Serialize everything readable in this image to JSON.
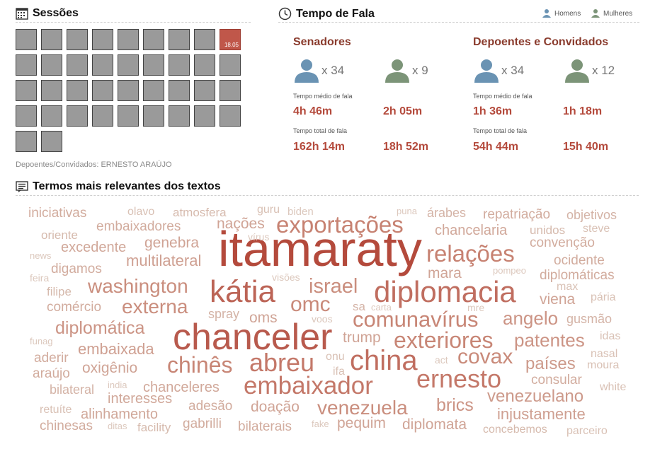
{
  "sessions": {
    "title": "Sessões",
    "icon": "calendar-icon",
    "active_date": "18.05",
    "total": 38,
    "depoentes_label": "Depoentes/Convidados: ERNESTO ARAÚJO"
  },
  "speech": {
    "title": "Tempo de Fala",
    "icon": "clock-icon",
    "legend": {
      "men": "Homens",
      "women": "Mulheres"
    },
    "colors": {
      "men": "#6a93b3",
      "women": "#7c9478",
      "highlight": "#b44a3c",
      "heading": "#8a3b2d"
    },
    "groups": [
      {
        "title": "Senadores",
        "men": {
          "count": "x 34",
          "avg": "4h 46m",
          "total": "162h 14m"
        },
        "women": {
          "count": "x 9",
          "avg": "2h 05m",
          "total": "18h 52m"
        }
      },
      {
        "title": "Depoentes e Convidados",
        "men": {
          "count": "x 34",
          "avg": "1h 36m",
          "total": "54h 44m"
        },
        "women": {
          "count": "x 12",
          "avg": "1h 18m",
          "total": "15h 40m"
        }
      }
    ],
    "avg_label": "Tempo médio de fala",
    "total_label": "Tempo total de fala"
  },
  "terms": {
    "title": "Termos mais relevantes dos textos",
    "icon": "text-icon",
    "words": [
      {
        "t": "itamaraty",
        "s": 70,
        "c": "#b44a3c"
      },
      {
        "t": "chanceler",
        "s": 52,
        "c": "#b85a4d"
      },
      {
        "t": "kátia",
        "s": 44,
        "c": "#bc6456"
      },
      {
        "t": "diplomacia",
        "s": 42,
        "c": "#c06e60"
      },
      {
        "t": "china",
        "s": 40,
        "c": "#c06e60"
      },
      {
        "t": "ernesto",
        "s": 36,
        "c": "#c47869"
      },
      {
        "t": "abreu",
        "s": 36,
        "c": "#c47869"
      },
      {
        "t": "embaixador",
        "s": 35,
        "c": "#c47869"
      },
      {
        "t": "exportações",
        "s": 33,
        "c": "#c78272"
      },
      {
        "t": "relações",
        "s": 33,
        "c": "#c78272"
      },
      {
        "t": "chinês",
        "s": 32,
        "c": "#c88676"
      },
      {
        "t": "exteriores",
        "s": 32,
        "c": "#c88676"
      },
      {
        "t": "comunavírus",
        "s": 31,
        "c": "#c88676"
      },
      {
        "t": "omc",
        "s": 30,
        "c": "#c98a7a"
      },
      {
        "t": "covax",
        "s": 30,
        "c": "#c98a7a"
      },
      {
        "t": "israel",
        "s": 29,
        "c": "#ca8e7e"
      },
      {
        "t": "venezuela",
        "s": 28,
        "c": "#ca8e7e"
      },
      {
        "t": "washington",
        "s": 28,
        "c": "#ca8e7e"
      },
      {
        "t": "externa",
        "s": 28,
        "c": "#ca8e7e"
      },
      {
        "t": "angelo",
        "s": 26,
        "c": "#cc9485"
      },
      {
        "t": "patentes",
        "s": 26,
        "c": "#cc9485"
      },
      {
        "t": "diplomática",
        "s": 25,
        "c": "#cc9485"
      },
      {
        "t": "brics",
        "s": 25,
        "c": "#cc9485"
      },
      {
        "t": "venezuelano",
        "s": 24,
        "c": "#cd9a8b"
      },
      {
        "t": "países",
        "s": 24,
        "c": "#cd9a8b"
      },
      {
        "t": "injustamente",
        "s": 22,
        "c": "#cfa092"
      },
      {
        "t": "multilateral",
        "s": 22,
        "c": "#cfa092"
      },
      {
        "t": "embaixada",
        "s": 22,
        "c": "#cfa092"
      },
      {
        "t": "diplomata",
        "s": 21,
        "c": "#d0a496"
      },
      {
        "t": "oxigênio",
        "s": 21,
        "c": "#d0a496"
      },
      {
        "t": "doação",
        "s": 21,
        "c": "#d0a496"
      },
      {
        "t": "pequim",
        "s": 21,
        "c": "#d0a496"
      },
      {
        "t": "trump",
        "s": 21,
        "c": "#d0a496"
      },
      {
        "t": "mara",
        "s": 21,
        "c": "#d0a496"
      },
      {
        "t": "nações",
        "s": 21,
        "c": "#d0a496"
      },
      {
        "t": "oms",
        "s": 21,
        "c": "#d0a496"
      },
      {
        "t": "genebra",
        "s": 21,
        "c": "#d0a496"
      },
      {
        "t": "viena",
        "s": 21,
        "c": "#d0a496"
      },
      {
        "t": "chancelaria",
        "s": 20,
        "c": "#d1a89a"
      },
      {
        "t": "excedente",
        "s": 20,
        "c": "#d1a89a"
      },
      {
        "t": "alinhamento",
        "s": 20,
        "c": "#d1a89a"
      },
      {
        "t": "chanceleres",
        "s": 20,
        "c": "#d1a89a"
      },
      {
        "t": "interesses",
        "s": 20,
        "c": "#d1a89a"
      },
      {
        "t": "embaixadores",
        "s": 19,
        "c": "#d2ac9e"
      },
      {
        "t": "repatriação",
        "s": 19,
        "c": "#d2ac9e"
      },
      {
        "t": "diplomáticas",
        "s": 19,
        "c": "#d2ac9e"
      },
      {
        "t": "digamos",
        "s": 19,
        "c": "#d2ac9e"
      },
      {
        "t": "consular",
        "s": 19,
        "c": "#d2ac9e"
      },
      {
        "t": "convenção",
        "s": 19,
        "c": "#d2ac9e"
      },
      {
        "t": "ocidente",
        "s": 19,
        "c": "#d2ac9e"
      },
      {
        "t": "comércio",
        "s": 19,
        "c": "#d2ac9e"
      },
      {
        "t": "iniciativas",
        "s": 19,
        "c": "#d2ac9e"
      },
      {
        "t": "chinesas",
        "s": 19,
        "c": "#d2ac9e"
      },
      {
        "t": "bilaterais",
        "s": 19,
        "c": "#d2ac9e"
      },
      {
        "t": "gabrilli",
        "s": 19,
        "c": "#d2ac9e"
      },
      {
        "t": "adesão",
        "s": 19,
        "c": "#d2ac9e"
      },
      {
        "t": "aderir",
        "s": 19,
        "c": "#d2ac9e"
      },
      {
        "t": "araújo",
        "s": 19,
        "c": "#d2ac9e"
      },
      {
        "t": "bilateral",
        "s": 18,
        "c": "#d4b3a6"
      },
      {
        "t": "spray",
        "s": 18,
        "c": "#d4b3a6"
      },
      {
        "t": "árabes",
        "s": 18,
        "c": "#d4b3a6"
      },
      {
        "t": "objetivos",
        "s": 18,
        "c": "#d4b3a6"
      },
      {
        "t": "gusmão",
        "s": 18,
        "c": "#d4b3a6"
      },
      {
        "t": "sa",
        "s": 17,
        "c": "#d4b3a6"
      },
      {
        "t": "unidos",
        "s": 17,
        "c": "#d6baad"
      },
      {
        "t": "atmosfera",
        "s": 17,
        "c": "#d6baad"
      },
      {
        "t": "facility",
        "s": 17,
        "c": "#d6baad"
      },
      {
        "t": "concebemos",
        "s": 16,
        "c": "#d6baad"
      },
      {
        "t": "filipe",
        "s": 17,
        "c": "#d6baad"
      },
      {
        "t": "oriente",
        "s": 17,
        "c": "#d6baad"
      },
      {
        "t": "olavo",
        "s": 16,
        "c": "#d9c1b5"
      },
      {
        "t": "guru",
        "s": 16,
        "c": "#d9c1b5"
      },
      {
        "t": "steve",
        "s": 16,
        "c": "#d9c1b5"
      },
      {
        "t": "max",
        "s": 16,
        "c": "#d9c1b5"
      },
      {
        "t": "pária",
        "s": 16,
        "c": "#d9c1b5"
      },
      {
        "t": "moura",
        "s": 16,
        "c": "#d9c1b5"
      },
      {
        "t": "nasal",
        "s": 16,
        "c": "#d9c1b5"
      },
      {
        "t": "white",
        "s": 16,
        "c": "#d9c1b5"
      },
      {
        "t": "idas",
        "s": 16,
        "c": "#d9c1b5"
      },
      {
        "t": "onu",
        "s": 16,
        "c": "#d9c1b5"
      },
      {
        "t": "ifa",
        "s": 16,
        "c": "#d9c1b5"
      },
      {
        "t": "retuíte",
        "s": 16,
        "c": "#d9c1b5"
      },
      {
        "t": "parceiro",
        "s": 16,
        "c": "#d9c1b5"
      },
      {
        "t": "biden",
        "s": 15,
        "c": "#dcc8bd"
      },
      {
        "t": "vírus",
        "s": 14,
        "c": "#dcc8bd"
      },
      {
        "t": "visões",
        "s": 14,
        "c": "#dcc8bd"
      },
      {
        "t": "voos",
        "s": 14,
        "c": "#dcc8bd"
      },
      {
        "t": "mre",
        "s": 14,
        "c": "#dcc8bd"
      },
      {
        "t": "act",
        "s": 14,
        "c": "#dcc8bd"
      },
      {
        "t": "feira",
        "s": 14,
        "c": "#dcc8bd"
      },
      {
        "t": "news",
        "s": 13,
        "c": "#dcc8bd"
      },
      {
        "t": "funag",
        "s": 13,
        "c": "#dcc8bd"
      },
      {
        "t": "india",
        "s": 13,
        "c": "#dcc8bd"
      },
      {
        "t": "ditas",
        "s": 13,
        "c": "#dcc8bd"
      },
      {
        "t": "fake",
        "s": 13,
        "c": "#dcc8bd"
      },
      {
        "t": "puna",
        "s": 13,
        "c": "#dcc8bd"
      },
      {
        "t": "pompeo",
        "s": 13,
        "c": "#dcc8bd"
      },
      {
        "t": "carta",
        "s": 13,
        "c": "#dcc8bd"
      }
    ]
  }
}
